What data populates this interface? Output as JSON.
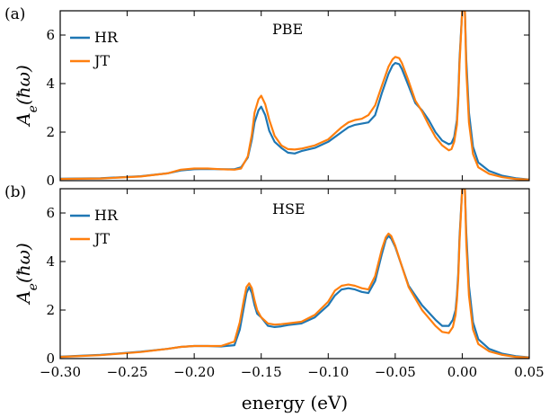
{
  "chart_data": [
    {
      "type": "line",
      "panel_label": "(a)",
      "annotation": "PBE",
      "xlabel": "",
      "ylabel": "A_e(ħω)",
      "xlim": [
        -0.3,
        0.05
      ],
      "ylim": [
        0,
        7
      ],
      "xticks": [
        -0.3,
        -0.25,
        -0.2,
        -0.15,
        -0.1,
        -0.05,
        0.0,
        0.05
      ],
      "yticks": [
        0,
        2,
        4,
        6
      ],
      "legend": "top-left",
      "series": [
        {
          "name": "HR",
          "color": "#1f77b4",
          "x": [
            -0.3,
            -0.27,
            -0.24,
            -0.22,
            -0.21,
            -0.2,
            -0.19,
            -0.18,
            -0.17,
            -0.165,
            -0.16,
            -0.157,
            -0.155,
            -0.152,
            -0.15,
            -0.147,
            -0.144,
            -0.14,
            -0.135,
            -0.13,
            -0.125,
            -0.12,
            -0.11,
            -0.1,
            -0.09,
            -0.085,
            -0.08,
            -0.075,
            -0.07,
            -0.065,
            -0.06,
            -0.055,
            -0.052,
            -0.05,
            -0.047,
            -0.045,
            -0.04,
            -0.035,
            -0.03,
            -0.025,
            -0.02,
            -0.015,
            -0.01,
            -0.008,
            -0.006,
            -0.004,
            -0.003,
            -0.002,
            0.0,
            0.002,
            0.003,
            0.005,
            0.008,
            0.012,
            0.02,
            0.03,
            0.04,
            0.05
          ],
          "y": [
            0.08,
            0.1,
            0.18,
            0.3,
            0.42,
            0.47,
            0.48,
            0.47,
            0.47,
            0.55,
            0.95,
            1.7,
            2.4,
            2.9,
            3.05,
            2.7,
            2.05,
            1.6,
            1.35,
            1.15,
            1.12,
            1.22,
            1.35,
            1.6,
            2.0,
            2.2,
            2.3,
            2.35,
            2.4,
            2.7,
            3.6,
            4.4,
            4.75,
            4.85,
            4.8,
            4.6,
            3.9,
            3.2,
            2.9,
            2.5,
            2.0,
            1.65,
            1.5,
            1.55,
            1.8,
            2.5,
            3.5,
            5.0,
            7.0,
            7.0,
            5.0,
            2.8,
            1.4,
            0.75,
            0.4,
            0.2,
            0.1,
            0.05
          ]
        },
        {
          "name": "JT",
          "color": "#ff7f0e",
          "x": [
            -0.3,
            -0.27,
            -0.24,
            -0.22,
            -0.21,
            -0.2,
            -0.19,
            -0.18,
            -0.17,
            -0.165,
            -0.16,
            -0.157,
            -0.155,
            -0.152,
            -0.15,
            -0.147,
            -0.144,
            -0.14,
            -0.135,
            -0.13,
            -0.125,
            -0.12,
            -0.11,
            -0.1,
            -0.09,
            -0.085,
            -0.08,
            -0.075,
            -0.07,
            -0.065,
            -0.06,
            -0.055,
            -0.052,
            -0.05,
            -0.047,
            -0.045,
            -0.04,
            -0.035,
            -0.03,
            -0.025,
            -0.02,
            -0.015,
            -0.01,
            -0.008,
            -0.006,
            -0.004,
            -0.003,
            -0.002,
            0.0,
            0.002,
            0.003,
            0.005,
            0.008,
            0.012,
            0.02,
            0.03,
            0.04,
            0.05
          ],
          "y": [
            0.07,
            0.09,
            0.17,
            0.3,
            0.45,
            0.5,
            0.5,
            0.47,
            0.45,
            0.5,
            1.0,
            1.9,
            2.8,
            3.35,
            3.5,
            3.15,
            2.5,
            1.85,
            1.45,
            1.3,
            1.28,
            1.32,
            1.45,
            1.7,
            2.2,
            2.4,
            2.5,
            2.55,
            2.7,
            3.1,
            3.9,
            4.7,
            5.0,
            5.1,
            5.05,
            4.85,
            4.1,
            3.3,
            2.85,
            2.3,
            1.8,
            1.45,
            1.25,
            1.3,
            1.6,
            2.3,
            3.3,
            4.8,
            7.0,
            7.0,
            4.6,
            2.4,
            1.1,
            0.55,
            0.28,
            0.14,
            0.07,
            0.04
          ]
        }
      ]
    },
    {
      "type": "line",
      "panel_label": "(b)",
      "annotation": "HSE",
      "xlabel": "energy (eV)",
      "ylabel": "A_e(ħω)",
      "xlim": [
        -0.3,
        0.05
      ],
      "ylim": [
        0,
        7
      ],
      "xticks": [
        -0.3,
        -0.25,
        -0.2,
        -0.15,
        -0.1,
        -0.05,
        0.0,
        0.05
      ],
      "xtick_labels": [
        "−0.30",
        "−0.25",
        "−0.20",
        "−0.15",
        "−0.10",
        "−0.05",
        "0.00",
        "0.05"
      ],
      "yticks": [
        0,
        2,
        4,
        6
      ],
      "legend": "top-left",
      "series": [
        {
          "name": "HR",
          "color": "#1f77b4",
          "x": [
            -0.3,
            -0.27,
            -0.24,
            -0.22,
            -0.21,
            -0.2,
            -0.19,
            -0.18,
            -0.17,
            -0.166,
            -0.163,
            -0.161,
            -0.159,
            -0.157,
            -0.155,
            -0.153,
            -0.15,
            -0.145,
            -0.14,
            -0.135,
            -0.13,
            -0.12,
            -0.11,
            -0.1,
            -0.095,
            -0.09,
            -0.085,
            -0.08,
            -0.075,
            -0.07,
            -0.065,
            -0.06,
            -0.057,
            -0.055,
            -0.053,
            -0.05,
            -0.045,
            -0.04,
            -0.03,
            -0.02,
            -0.015,
            -0.01,
            -0.007,
            -0.005,
            -0.004,
            -0.003,
            -0.002,
            0.0,
            0.002,
            0.003,
            0.005,
            0.008,
            0.012,
            0.02,
            0.03,
            0.04,
            0.05
          ],
          "y": [
            0.08,
            0.15,
            0.28,
            0.4,
            0.48,
            0.52,
            0.52,
            0.5,
            0.55,
            1.2,
            2.1,
            2.7,
            2.95,
            2.7,
            2.2,
            1.85,
            1.7,
            1.35,
            1.3,
            1.33,
            1.38,
            1.45,
            1.7,
            2.2,
            2.6,
            2.85,
            2.9,
            2.85,
            2.75,
            2.7,
            3.2,
            4.3,
            4.9,
            5.05,
            4.95,
            4.6,
            3.8,
            3.0,
            2.2,
            1.6,
            1.35,
            1.35,
            1.6,
            2.0,
            2.6,
            3.5,
            5.0,
            7.0,
            7.0,
            5.2,
            3.0,
            1.5,
            0.8,
            0.4,
            0.2,
            0.1,
            0.05
          ]
        },
        {
          "name": "JT",
          "color": "#ff7f0e",
          "x": [
            -0.3,
            -0.27,
            -0.24,
            -0.22,
            -0.21,
            -0.2,
            -0.19,
            -0.18,
            -0.17,
            -0.166,
            -0.163,
            -0.161,
            -0.159,
            -0.157,
            -0.155,
            -0.153,
            -0.15,
            -0.145,
            -0.14,
            -0.135,
            -0.13,
            -0.12,
            -0.11,
            -0.1,
            -0.095,
            -0.09,
            -0.085,
            -0.08,
            -0.075,
            -0.07,
            -0.065,
            -0.06,
            -0.057,
            -0.055,
            -0.053,
            -0.05,
            -0.045,
            -0.04,
            -0.03,
            -0.02,
            -0.015,
            -0.01,
            -0.007,
            -0.005,
            -0.004,
            -0.003,
            -0.002,
            0.0,
            0.002,
            0.003,
            0.005,
            0.008,
            0.012,
            0.02,
            0.03,
            0.04,
            0.05
          ],
          "y": [
            0.07,
            0.14,
            0.27,
            0.4,
            0.48,
            0.52,
            0.52,
            0.52,
            0.7,
            1.5,
            2.4,
            2.95,
            3.1,
            2.9,
            2.4,
            2.0,
            1.7,
            1.45,
            1.4,
            1.42,
            1.45,
            1.52,
            1.8,
            2.35,
            2.8,
            3.0,
            3.05,
            3.0,
            2.9,
            2.85,
            3.4,
            4.5,
            5.0,
            5.15,
            5.05,
            4.65,
            3.8,
            2.95,
            2.0,
            1.35,
            1.1,
            1.05,
            1.3,
            1.8,
            2.4,
            3.3,
            4.8,
            7.0,
            7.0,
            4.8,
            2.6,
            1.2,
            0.6,
            0.3,
            0.15,
            0.07,
            0.04
          ]
        }
      ]
    }
  ]
}
